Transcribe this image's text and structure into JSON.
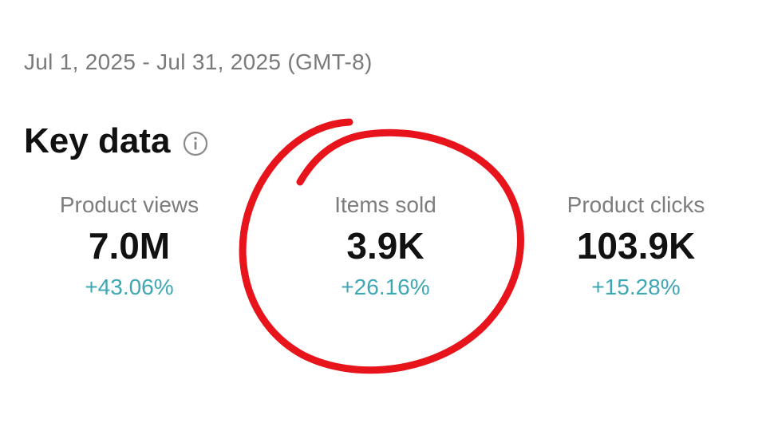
{
  "date_range": "Jul 1, 2025 - Jul 31, 2025 (GMT-8)",
  "section": {
    "title": "Key data",
    "info_icon": "info-icon"
  },
  "metrics": [
    {
      "label": "Product views",
      "value": "7.0M",
      "change": "+43.06%"
    },
    {
      "label": "Items sold",
      "value": "3.9K",
      "change": "+26.16%"
    },
    {
      "label": "Product clicks",
      "value": "103.9K",
      "change": "+15.28%"
    }
  ],
  "colors": {
    "change_positive": "#3ea7b4",
    "annotation_circle": "#e8141b"
  }
}
